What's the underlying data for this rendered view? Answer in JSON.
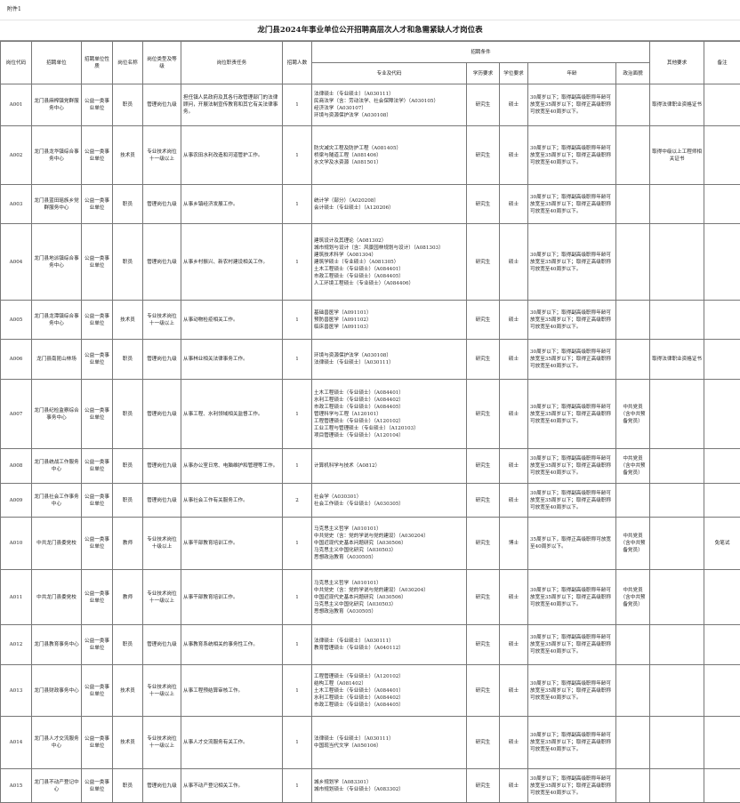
{
  "attachment": "附件1",
  "title": "龙门县2024年事业单位公开招聘高层次人才和急需紧缺人才岗位表",
  "headers": {
    "code": "岗位代码",
    "unit": "招聘单位",
    "nature": "招聘单位性质",
    "post": "岗位名称",
    "type": "岗位类型及等级",
    "duty": "岗位职责任务",
    "count": "招聘人数",
    "conditions": "招聘条件",
    "major": "专业及代码",
    "edu": "学历要求",
    "degree": "学位要求",
    "age": "年龄",
    "political": "政治面貌",
    "other": "其他要求",
    "remark": "备注"
  },
  "rows": [
    {
      "code": "A001",
      "unit": "龙门县麻榨镇党群服务中心",
      "nature": "公益一类事业单位",
      "post": "职员",
      "type": "管理岗位九级",
      "duty": "担任镇人民政府及其各行政管理部门的法律顾问，开展法制宣传教育和其它有关法律事务。",
      "count": "1",
      "major": "法律硕士（专业硕士）（A030111）\n民商法学（含：劳动法学、社会保障法学）（A030105）\n经济法学（A030107）\n环境与资源保护法学（A030108）",
      "edu": "研究生",
      "degree": "硕士",
      "age": "30周岁以下；取得副高级职称年龄可放宽至35周岁以下；取得正高级职称可放宽至40周岁以下。",
      "political": "",
      "other": "取得法律职业资格证书",
      "remark": ""
    },
    {
      "code": "A002",
      "unit": "龙门县龙华镇综合事务中心",
      "nature": "公益一类事业单位",
      "post": "技术员",
      "type": "专业技术岗位十一级以上",
      "duty": "从事农田水利改造和河道管护工作。",
      "count": "1",
      "major": "防灾减灾工程及防护工程（A081405）\n桥梁与隧道工程（A081406）\n水文学及水资源（A081501）",
      "edu": "研究生",
      "degree": "硕士",
      "age": "30周岁以下；取得副高级职称年龄可放宽至35周岁以下；取得正高级职称可放宽至40周岁以下。",
      "political": "",
      "other": "取得中级以上工程师相关证书",
      "remark": ""
    },
    {
      "code": "A003",
      "unit": "龙门县蓝田瑶族乡党群服务中心",
      "nature": "公益一类事业单位",
      "post": "职员",
      "type": "管理岗位九级",
      "duty": "从事乡镇经济发展工作。",
      "count": "1",
      "major": "统计学（部分）（A020208）\n会计硕士（专业硕士）（A120206）",
      "edu": "研究生",
      "degree": "硕士",
      "age": "30周岁以下；取得副高级职称年龄可放宽至35周岁以下；取得正高级职称可放宽至40周岁以下。",
      "political": "",
      "other": "",
      "remark": ""
    },
    {
      "code": "A004",
      "unit": "龙门县地派镇综合事务中心",
      "nature": "公益一类事业单位",
      "post": "职员",
      "type": "管理岗位九级",
      "duty": "从事乡村振兴、新农村建设相关工作。",
      "count": "1",
      "major": "建筑设计及其理论（A081302）\n城市规划与设计（含：风景园林规划与设计）（A081303）\n建筑技术科学（A081304）\n建筑学硕士（专业硕士）（A081305）\n土木工程硕士（专业硕士）（A084401）\n市政工程硕士（专业硕士）（A084405）\n人工环境工程硕士（专业硕士）（A084406）",
      "edu": "研究生",
      "degree": "硕士",
      "age": "30周岁以下；取得副高级职称年龄可放宽至35周岁以下；取得正高级职称可放宽至40周岁以下。",
      "political": "",
      "other": "",
      "remark": ""
    },
    {
      "code": "A005",
      "unit": "龙门县龙潭镇综合事务中心",
      "nature": "公益一类事业单位",
      "post": "技术员",
      "type": "专业技术岗位十一级以上",
      "duty": "从事动物检疫相关工作。",
      "count": "1",
      "major": "基础兽医学（A091101）\n预防兽医学（A091102）\n临床兽医学（A091103）",
      "edu": "研究生",
      "degree": "硕士",
      "age": "30周岁以下；取得副高级职称年龄可放宽至35周岁以下；取得正高级职称可放宽至40周岁以下。",
      "political": "",
      "other": "",
      "remark": ""
    },
    {
      "code": "A006",
      "unit": "龙门县南昆山林场",
      "nature": "公益一类事业单位",
      "post": "职员",
      "type": "管理岗位九级",
      "duty": "从事林业相关法律事务工作。",
      "count": "1",
      "major": "环境与资源保护法学（A030108）\n法律硕士（专业硕士）（A030111）",
      "edu": "研究生",
      "degree": "硕士",
      "age": "30周岁以下；取得副高级职称年龄可放宽至35周岁以下；取得正高级职称可放宽至40周岁以下。",
      "political": "",
      "other": "取得法律职业资格证书",
      "remark": ""
    },
    {
      "code": "A007",
      "unit": "龙门县纪检监察综合事务中心",
      "nature": "公益一类事业单位",
      "post": "职员",
      "type": "管理岗位九级",
      "duty": "从事工程、水利领域相关监督工作。",
      "count": "1",
      "major": "土木工程硕士（专业硕士）（A084401）\n水利工程硕士（专业硕士）（A084402）\n市政工程硕士（专业硕士）（A084405）\n管理科学与工程（A120101）\n工程管理硕士（专业硕士）（A120102）\n工业工程与管理硕士（专业硕士）（A120103）\n项目管理硕士（专业硕士）（A120104）",
      "edu": "研究生",
      "degree": "硕士",
      "age": "30周岁以下；取得副高级职称年龄可放宽至35周岁以下；取得正高级职称可放宽至40周岁以下。",
      "political": "中共党员（含中共预备党员）",
      "other": "",
      "remark": ""
    },
    {
      "code": "A008",
      "unit": "龙门县统战工作服务中心",
      "nature": "公益一类事业单位",
      "post": "职员",
      "type": "管理岗位九级",
      "duty": "从事办公室日常、电脑维护和管理等工作。",
      "count": "1",
      "major": "计算机科学与技术（A0812）",
      "edu": "研究生",
      "degree": "硕士",
      "age": "30周岁以下；取得副高级职称年龄可放宽至35周岁以下；取得正高级职称可放宽至40周岁以下。",
      "political": "中共党员（含中共预备党员）",
      "other": "",
      "remark": ""
    },
    {
      "code": "A009",
      "unit": "龙门县社会工作事务中心",
      "nature": "公益一类事业单位",
      "post": "职员",
      "type": "管理岗位九级",
      "duty": "从事社会工作有关服务工作。",
      "count": "2",
      "major": "社会学（A030301）\n社会工作硕士（专业硕士）（A030305）",
      "edu": "研究生",
      "degree": "硕士",
      "age": "30周岁以下；取得副高级职称年龄可放宽至35周岁以下；取得正高级职称可放宽至40周岁以下。",
      "political": "",
      "other": "",
      "remark": ""
    },
    {
      "code": "A010",
      "unit": "中共龙门县委党校",
      "nature": "公益一类事业单位",
      "post": "教师",
      "type": "专业技术岗位十级以上",
      "duty": "从事干部教育培训工作。",
      "count": "1",
      "major": "马克思主义哲学（A010101）\n中共党史（含：党的学说与党的建设）（A030204）\n中国近现代史基本问题研究（A030506）\n马克思主义中国化研究（A030503）\n思想政治教育（A030505）",
      "edu": "研究生",
      "degree": "博士",
      "age": "35周岁以下，取得正高级职称可放宽至40周岁以下。",
      "political": "中共党员（含中共预备党员）",
      "other": "",
      "remark": "免笔试"
    },
    {
      "code": "A011",
      "unit": "中共龙门县委党校",
      "nature": "公益一类事业单位",
      "post": "教师",
      "type": "专业技术岗位十一级以上",
      "duty": "从事干部教育培训工作。",
      "count": "1",
      "major": "马克思主义哲学（A010101）\n中共党史（含：党的学说与党的建设）（A030204）\n中国近现代史基本问题研究（A030506）\n马克思主义中国化研究（A030503）\n思想政治教育（A030505）",
      "edu": "研究生",
      "degree": "硕士",
      "age": "30周岁以下；取得副高级职称年龄可放宽至35周岁以下；取得正高级职称可放宽至40周岁以下。",
      "political": "中共党员（含中共预备党员）",
      "other": "",
      "remark": ""
    },
    {
      "code": "A012",
      "unit": "龙门县教育事务中心",
      "nature": "公益一类事业单位",
      "post": "职员",
      "type": "管理岗位九级",
      "duty": "从事教育系统相关的事务性工作。",
      "count": "1",
      "major": "法律硕士（专业硕士）（A030111）\n教育管理硕士（专业硕士）（A040112）",
      "edu": "研究生",
      "degree": "硕士",
      "age": "30周岁以下；取得副高级职称年龄可放宽至35周岁以下；取得正高级职称可放宽至40周岁以下。",
      "political": "",
      "other": "",
      "remark": ""
    },
    {
      "code": "A013",
      "unit": "龙门县财政事务中心",
      "nature": "公益一类事业单位",
      "post": "技术员",
      "type": "专业技术岗位十一级以上",
      "duty": "从事工程预结算审核工作。",
      "count": "1",
      "major": "工程管理硕士（专业硕士）（A120102）\n结构工程（A081402）\n土木工程硕士（专业硕士）（A084401）\n水利工程硕士（专业硕士）（A084402）\n市政工程硕士（专业硕士）（A084405）",
      "edu": "研究生",
      "degree": "硕士",
      "age": "30周岁以下；取得副高级职称年龄可放宽至35周岁以下；取得正高级职称可放宽至40周岁以下。",
      "political": "",
      "other": "",
      "remark": ""
    },
    {
      "code": "A014",
      "unit": "龙门县人才交流服务中心",
      "nature": "公益一类事业单位",
      "post": "技术员",
      "type": "专业技术岗位十一级以上",
      "duty": "从事人才交流服务有关工作。",
      "count": "1",
      "major": "法律硕士（专业硕士）（A030111）\n中国现当代文学（A050106）",
      "edu": "研究生",
      "degree": "硕士",
      "age": "30周岁以下；取得副高级职称年龄可放宽至35周岁以下；取得正高级职称可放宽至40周岁以下。",
      "political": "",
      "other": "",
      "remark": ""
    },
    {
      "code": "A015",
      "unit": "龙门县不动产登记中心",
      "nature": "公益一类事业单位",
      "post": "职员",
      "type": "管理岗位九级",
      "duty": "从事不动产登记相关工作。",
      "count": "1",
      "major": "城乡规划学（A083301）\n城市规划硕士（专业硕士）（A083302）",
      "edu": "研究生",
      "degree": "硕士",
      "age": "30周岁以下；取得副高级职称年龄可放宽至35周岁以下；取得正高级职称可放宽至40周岁以下。",
      "political": "",
      "other": "",
      "remark": ""
    }
  ]
}
